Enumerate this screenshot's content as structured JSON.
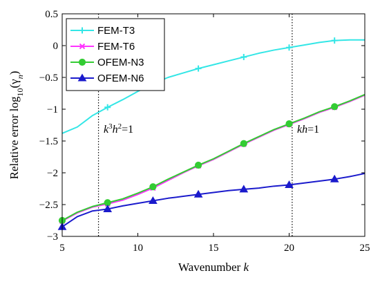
{
  "chart_data": {
    "type": "line",
    "xlabel": "Wavenumber",
    "xlabel_var": "k",
    "ylabel": "Relative error log",
    "ylabel_sub": "10",
    "ylabel_paren": "(γ",
    "ylabel_paren_sub": "n",
    "ylabel_close": ")",
    "xlim": [
      5,
      25
    ],
    "ylim": [
      -3,
      0.5
    ],
    "xticks": [
      5,
      10,
      15,
      20,
      25
    ],
    "xtick_labels": [
      "5",
      "10",
      "15",
      "20",
      "25"
    ],
    "yticks": [
      -3,
      -2.5,
      -2,
      -1.5,
      -1,
      -0.5,
      0,
      0.5
    ],
    "ytick_labels": [
      "−3",
      "−2.5",
      "−2",
      "−1.5",
      "−1",
      "−0.5",
      "0",
      "0.5"
    ],
    "grid": false,
    "legend_position": "top-left",
    "series": [
      {
        "name": "FEM-T3",
        "color": "#33e6e6",
        "marker": "plus",
        "x": [
          5,
          6,
          7,
          8,
          9,
          10,
          11,
          12,
          13,
          14,
          15,
          16,
          17,
          18,
          19,
          20,
          21,
          22,
          23,
          24,
          25
        ],
        "y": [
          -1.38,
          -1.28,
          -1.1,
          -0.97,
          -0.85,
          -0.72,
          -0.6,
          -0.5,
          -0.43,
          -0.36,
          -0.3,
          -0.24,
          -0.18,
          -0.12,
          -0.07,
          -0.03,
          0.01,
          0.05,
          0.08,
          0.09,
          0.09
        ],
        "marker_x": [
          8,
          11,
          14,
          17,
          20,
          23
        ]
      },
      {
        "name": "FEM-T6",
        "color": "#ff33ff",
        "marker": "x",
        "x": [
          5,
          6,
          7,
          8,
          9,
          10,
          11,
          12,
          13,
          14,
          15,
          16,
          17,
          18,
          19,
          20,
          21,
          22,
          23,
          24,
          25
        ],
        "y": [
          -2.76,
          -2.63,
          -2.54,
          -2.49,
          -2.43,
          -2.34,
          -2.24,
          -2.12,
          -2.0,
          -1.89,
          -1.79,
          -1.67,
          -1.55,
          -1.44,
          -1.33,
          -1.24,
          -1.15,
          -1.05,
          -0.97,
          -0.88,
          -0.78
        ],
        "marker_x": [
          5,
          8,
          11,
          14,
          17,
          20,
          23
        ]
      },
      {
        "name": "OFEM-N3",
        "color": "#33cc33",
        "marker": "circle",
        "x": [
          5,
          6,
          7,
          8,
          9,
          10,
          11,
          12,
          13,
          14,
          15,
          16,
          17,
          18,
          19,
          20,
          21,
          22,
          23,
          24,
          25
        ],
        "y": [
          -2.75,
          -2.62,
          -2.53,
          -2.47,
          -2.41,
          -2.32,
          -2.22,
          -2.1,
          -1.99,
          -1.88,
          -1.78,
          -1.66,
          -1.54,
          -1.43,
          -1.32,
          -1.23,
          -1.14,
          -1.04,
          -0.96,
          -0.87,
          -0.77
        ],
        "marker_x": [
          5,
          8,
          11,
          14,
          17,
          20,
          23
        ]
      },
      {
        "name": "OFEM-N6",
        "color": "#1a1acc",
        "marker": "triangle",
        "x": [
          5,
          6,
          7,
          8,
          9,
          10,
          11,
          12,
          13,
          14,
          15,
          16,
          17,
          18,
          19,
          20,
          21,
          22,
          23,
          24,
          25
        ],
        "y": [
          -2.85,
          -2.69,
          -2.6,
          -2.57,
          -2.52,
          -2.48,
          -2.44,
          -2.4,
          -2.37,
          -2.34,
          -2.31,
          -2.28,
          -2.26,
          -2.24,
          -2.21,
          -2.19,
          -2.16,
          -2.13,
          -2.1,
          -2.06,
          -2.01
        ],
        "marker_x": [
          5,
          8,
          11,
          14,
          17,
          20,
          23
        ]
      }
    ],
    "vlines": [
      {
        "x": 7.4,
        "label_k": "k",
        "label_k_sup": "3",
        "label_h": "h",
        "label_h_sup": "2",
        "label_eq": "=1"
      },
      {
        "x": 20.2,
        "label_kh": "kh",
        "label_eq": "=1"
      }
    ]
  }
}
